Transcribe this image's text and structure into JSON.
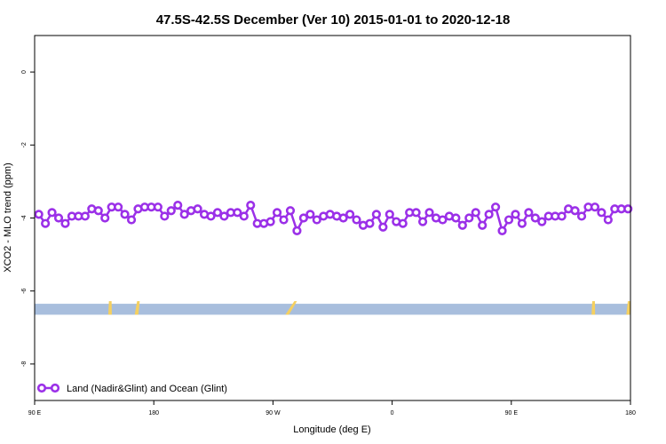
{
  "chart_data": {
    "type": "line",
    "title": "47.5S-42.5S December (Ver 10)   2015-01-01 to 2020-12-18",
    "xlabel": "Longitude (deg E)",
    "ylabel": "XCO2 - MLO trend (ppm)",
    "xlim": [
      90,
      450
    ],
    "ylim": [
      -9.0,
      1.0
    ],
    "x_ticks": [
      {
        "value": 90,
        "label": "90 E"
      },
      {
        "value": 162,
        "label": "180"
      },
      {
        "value": 234,
        "label": "90 W"
      },
      {
        "value": 306,
        "label": "0"
      },
      {
        "value": 378,
        "label": "90 E"
      },
      {
        "value": 450,
        "label": "180"
      }
    ],
    "y_ticks": [
      {
        "value": 0,
        "label": "0"
      },
      {
        "value": -2,
        "label": "-2"
      },
      {
        "value": -4,
        "label": "-4"
      },
      {
        "value": -6,
        "label": "-6"
      },
      {
        "value": -8,
        "label": "-8"
      }
    ],
    "legend": {
      "position": "bottom-left",
      "entry": "Land (Nadir&Glint) and Ocean (Glint)"
    },
    "series": [
      {
        "name": "Land (Nadir&Glint) and Ocean (Glint)",
        "color": "#9B30E8",
        "x": [
          92.5,
          96.5,
          100.5,
          104.5,
          108.5,
          112.5,
          116.5,
          120.5,
          124.5,
          128.5,
          132.5,
          136.5,
          140.5,
          144.5,
          148.5,
          152.5,
          156.5,
          160.5,
          164.5,
          168.5,
          172.5,
          176.5,
          180.5,
          184.5,
          188.5,
          192.5,
          196.5,
          200.5,
          204.5,
          208.5,
          212.5,
          216.5,
          220.5,
          224.5,
          228.5,
          232.5,
          236.5,
          240.5,
          244.5,
          248.5,
          252.5,
          256.5,
          260.5,
          264.5,
          268.5,
          272.5,
          276.5,
          280.5,
          284.5,
          288.5,
          292.5,
          296.5,
          300.5,
          304.5,
          308.5,
          312.5,
          316.5,
          320.5,
          324.5,
          328.5,
          332.5,
          336.5,
          340.5,
          344.5,
          348.5,
          352.5,
          356.5,
          360.5,
          364.5,
          368.5,
          372.5,
          376.5,
          380.5,
          384.5,
          388.5,
          392.5,
          396.5,
          400.5,
          404.5,
          408.5,
          412.5,
          416.5,
          420.5,
          424.5,
          428.5,
          432.5,
          436.5,
          440.5,
          444.5,
          448.5
        ],
        "y": [
          -3.9,
          -4.15,
          -3.85,
          -4.0,
          -4.15,
          -3.95,
          -3.95,
          -3.95,
          -3.75,
          -3.8,
          -4.0,
          -3.7,
          -3.7,
          -3.9,
          -4.05,
          -3.75,
          -3.7,
          -3.7,
          -3.7,
          -3.95,
          -3.8,
          -3.65,
          -3.9,
          -3.8,
          -3.75,
          -3.9,
          -3.95,
          -3.85,
          -3.95,
          -3.85,
          -3.85,
          -3.95,
          -3.65,
          -4.15,
          -4.15,
          -4.1,
          -3.85,
          -4.05,
          -3.8,
          -4.35,
          -4.0,
          -3.9,
          -4.05,
          -3.95,
          -3.9,
          -3.95,
          -4.0,
          -3.9,
          -4.05,
          -4.2,
          -4.15,
          -3.9,
          -4.25,
          -3.9,
          -4.1,
          -4.15,
          -3.85,
          -3.85,
          -4.1,
          -3.85,
          -4.0,
          -4.05,
          -3.95,
          -4.0,
          -4.2,
          -4.0,
          -3.85,
          -4.2,
          -3.9,
          -3.7,
          -4.35,
          -4.05,
          -3.9,
          -4.15,
          -3.85,
          -4.0,
          -4.1,
          -3.95,
          -3.95,
          -3.95,
          -3.75,
          -3.8,
          -3.95,
          -3.7,
          -3.7,
          -3.85,
          -4.05,
          -3.75,
          -3.75,
          -3.75
        ]
      }
    ],
    "band": {
      "y_from": -6.65,
      "y_to": -6.35,
      "color": "#A8BEDD"
    },
    "land_segments": {
      "color": "#F5D060",
      "ranges": [
        [
          134.5,
          136.5
        ],
        [
          150.5,
          153.5
        ],
        [
          241.5,
          248.5
        ],
        [
          426.5,
          428.5
        ],
        [
          447.5,
          450.5
        ]
      ]
    }
  }
}
